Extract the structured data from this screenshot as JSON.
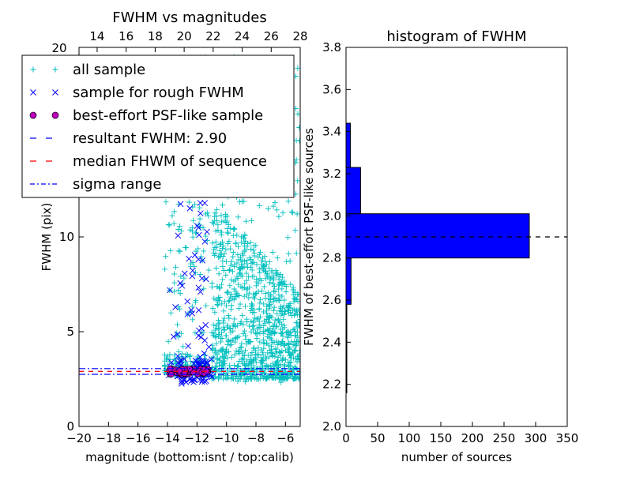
{
  "chart_data": [
    {
      "type": "scatter",
      "title": "FWHM vs magnitudes",
      "xlabel": "magnitude (bottom:isnt / top:calib)",
      "ylabel": "FWHM (pix)",
      "xlim": [
        -20,
        -5
      ],
      "ylim": [
        0,
        20
      ],
      "x_ticks": [
        "−20",
        "−18",
        "−16",
        "−14",
        "−12",
        "−10",
        "−8",
        "−6"
      ],
      "y_ticks": [
        "0",
        "5",
        "10"
      ],
      "top_axis": {
        "xlim": [
          12.75,
          28
        ],
        "ticks": [
          "14",
          "16",
          "18",
          "20",
          "22",
          "24",
          "26",
          "28"
        ],
        "top_label": "20"
      },
      "legend": {
        "position": "upper-left",
        "entries": [
          {
            "label": "all sample",
            "marker": "+",
            "color": "#00bfbf"
          },
          {
            "label": "sample for rough FWHM",
            "marker": "x",
            "color": "#0000ff"
          },
          {
            "label": "best-effort PSF-like sample",
            "marker": "o",
            "color": "#bf00bf"
          },
          {
            "label": "resultant FWHM: 2.90",
            "linestyle": "dashed",
            "color": "#0000ff"
          },
          {
            "label": "median FHWM of sequence",
            "linestyle": "dashed",
            "color": "#ff0000"
          },
          {
            "label": "sigma range",
            "linestyle": "dashdot",
            "color": "#0000ff"
          }
        ]
      },
      "series": [
        {
          "name": "all sample",
          "color": "#00bfbf",
          "clusters": [
            {
              "x_range": [
                -14.2,
                -11.2
              ],
              "y_range": [
                2.6,
                19.5
              ],
              "count": 260
            },
            {
              "x_range": [
                -11.0,
                -5.0
              ],
              "y_range": [
                2.2,
                19.5
              ],
              "count": 1100,
              "dense_y": [
                2.5,
                9
              ]
            }
          ]
        },
        {
          "name": "sample for rough FWHM",
          "color": "#0000ff",
          "clusters": [
            {
              "x_range": [
                -14.0,
                -11.0
              ],
              "y_range": [
                2.2,
                19.5
              ],
              "count": 170
            }
          ]
        },
        {
          "name": "best-effort PSF-like sample",
          "color": "#bf00bf",
          "clusters": [
            {
              "x_range": [
                -13.9,
                -11.2
              ],
              "y_range": [
                2.75,
                3.05
              ],
              "count": 70
            }
          ]
        }
      ],
      "hlines": [
        {
          "name": "resultant FWHM",
          "y": 2.9,
          "style": "dashed",
          "color": "#0000ff"
        },
        {
          "name": "median FHWM of sequence",
          "y": 2.9,
          "style": "dashed",
          "color": "#ff0000"
        },
        {
          "name": "sigma range",
          "y": 3.05,
          "style": "dashdot",
          "color": "#0000ff"
        },
        {
          "name": "sigma range",
          "y": 2.75,
          "style": "dashdot",
          "color": "#0000ff"
        }
      ]
    },
    {
      "type": "bar",
      "orientation": "horizontal",
      "title": "histogram of FWHM",
      "xlabel": "number of sources",
      "ylabel": "FWHM of best-effort PSF-like sources",
      "xlim": [
        0,
        350
      ],
      "ylim": [
        2.0,
        3.8
      ],
      "x_ticks": [
        "0",
        "50",
        "100",
        "150",
        "200",
        "250",
        "300",
        "350"
      ],
      "y_ticks": [
        "2.0",
        "2.2",
        "2.4",
        "2.6",
        "2.8",
        "3.0",
        "3.2",
        "3.4",
        "3.6",
        "3.8"
      ],
      "color": "#0000ff",
      "bins": [
        {
          "y0": 2.16,
          "y1": 2.37,
          "count": 1
        },
        {
          "y0": 2.37,
          "y1": 2.58,
          "count": 1
        },
        {
          "y0": 2.58,
          "y1": 2.8,
          "count": 8
        },
        {
          "y0": 2.8,
          "y1": 3.01,
          "count": 290
        },
        {
          "y0": 3.01,
          "y1": 3.23,
          "count": 23
        },
        {
          "y0": 3.23,
          "y1": 3.44,
          "count": 7
        }
      ],
      "hline": {
        "y": 2.9,
        "style": "dashed",
        "color": "#000000"
      }
    }
  ]
}
